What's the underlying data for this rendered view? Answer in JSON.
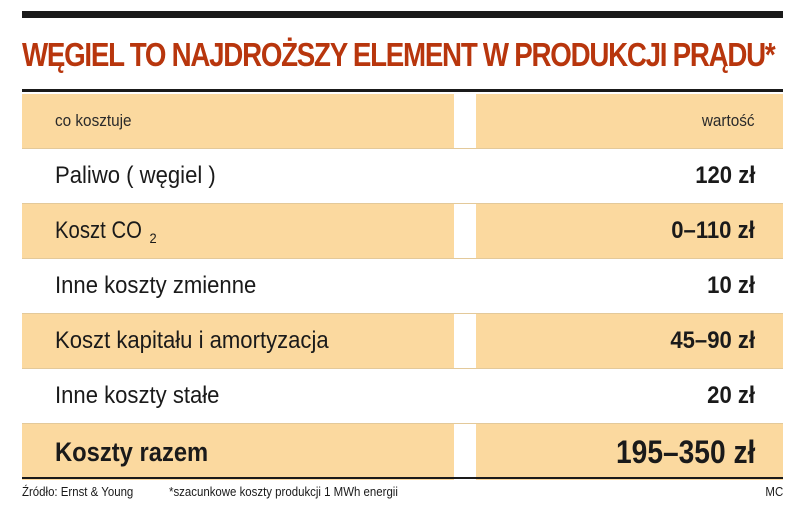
{
  "title": "WĘGIEL TO NAJDROŻSZY ELEMENT W PRODUKCJI PRĄDU*",
  "table": {
    "header": {
      "label": "co kosztuje",
      "value": "wartość"
    },
    "rows": [
      {
        "label": "Paliwo ( węgiel )",
        "value": "120  zł"
      },
      {
        "label_main": "Koszt CO",
        "label_sub": "2",
        "value": "0–110 zł"
      },
      {
        "label": "Inne koszty zmienne",
        "value": "10 zł"
      },
      {
        "label": "Koszt kapitału i amortyzacja",
        "value": "45–90 zł"
      },
      {
        "label": "Inne koszty stałe",
        "value": "20 zł"
      }
    ],
    "total": {
      "label": "Koszty razem",
      "value": "195–350 zł"
    }
  },
  "footer": {
    "source": "Źródło: Ernst & Young",
    "note": "*szacunkowe koszty produkcji 1 MWh energii",
    "author": "MC"
  },
  "colors": {
    "title": "#b8360d",
    "shaded_row": "#fbd99f",
    "rule": "#1a1a1a"
  }
}
